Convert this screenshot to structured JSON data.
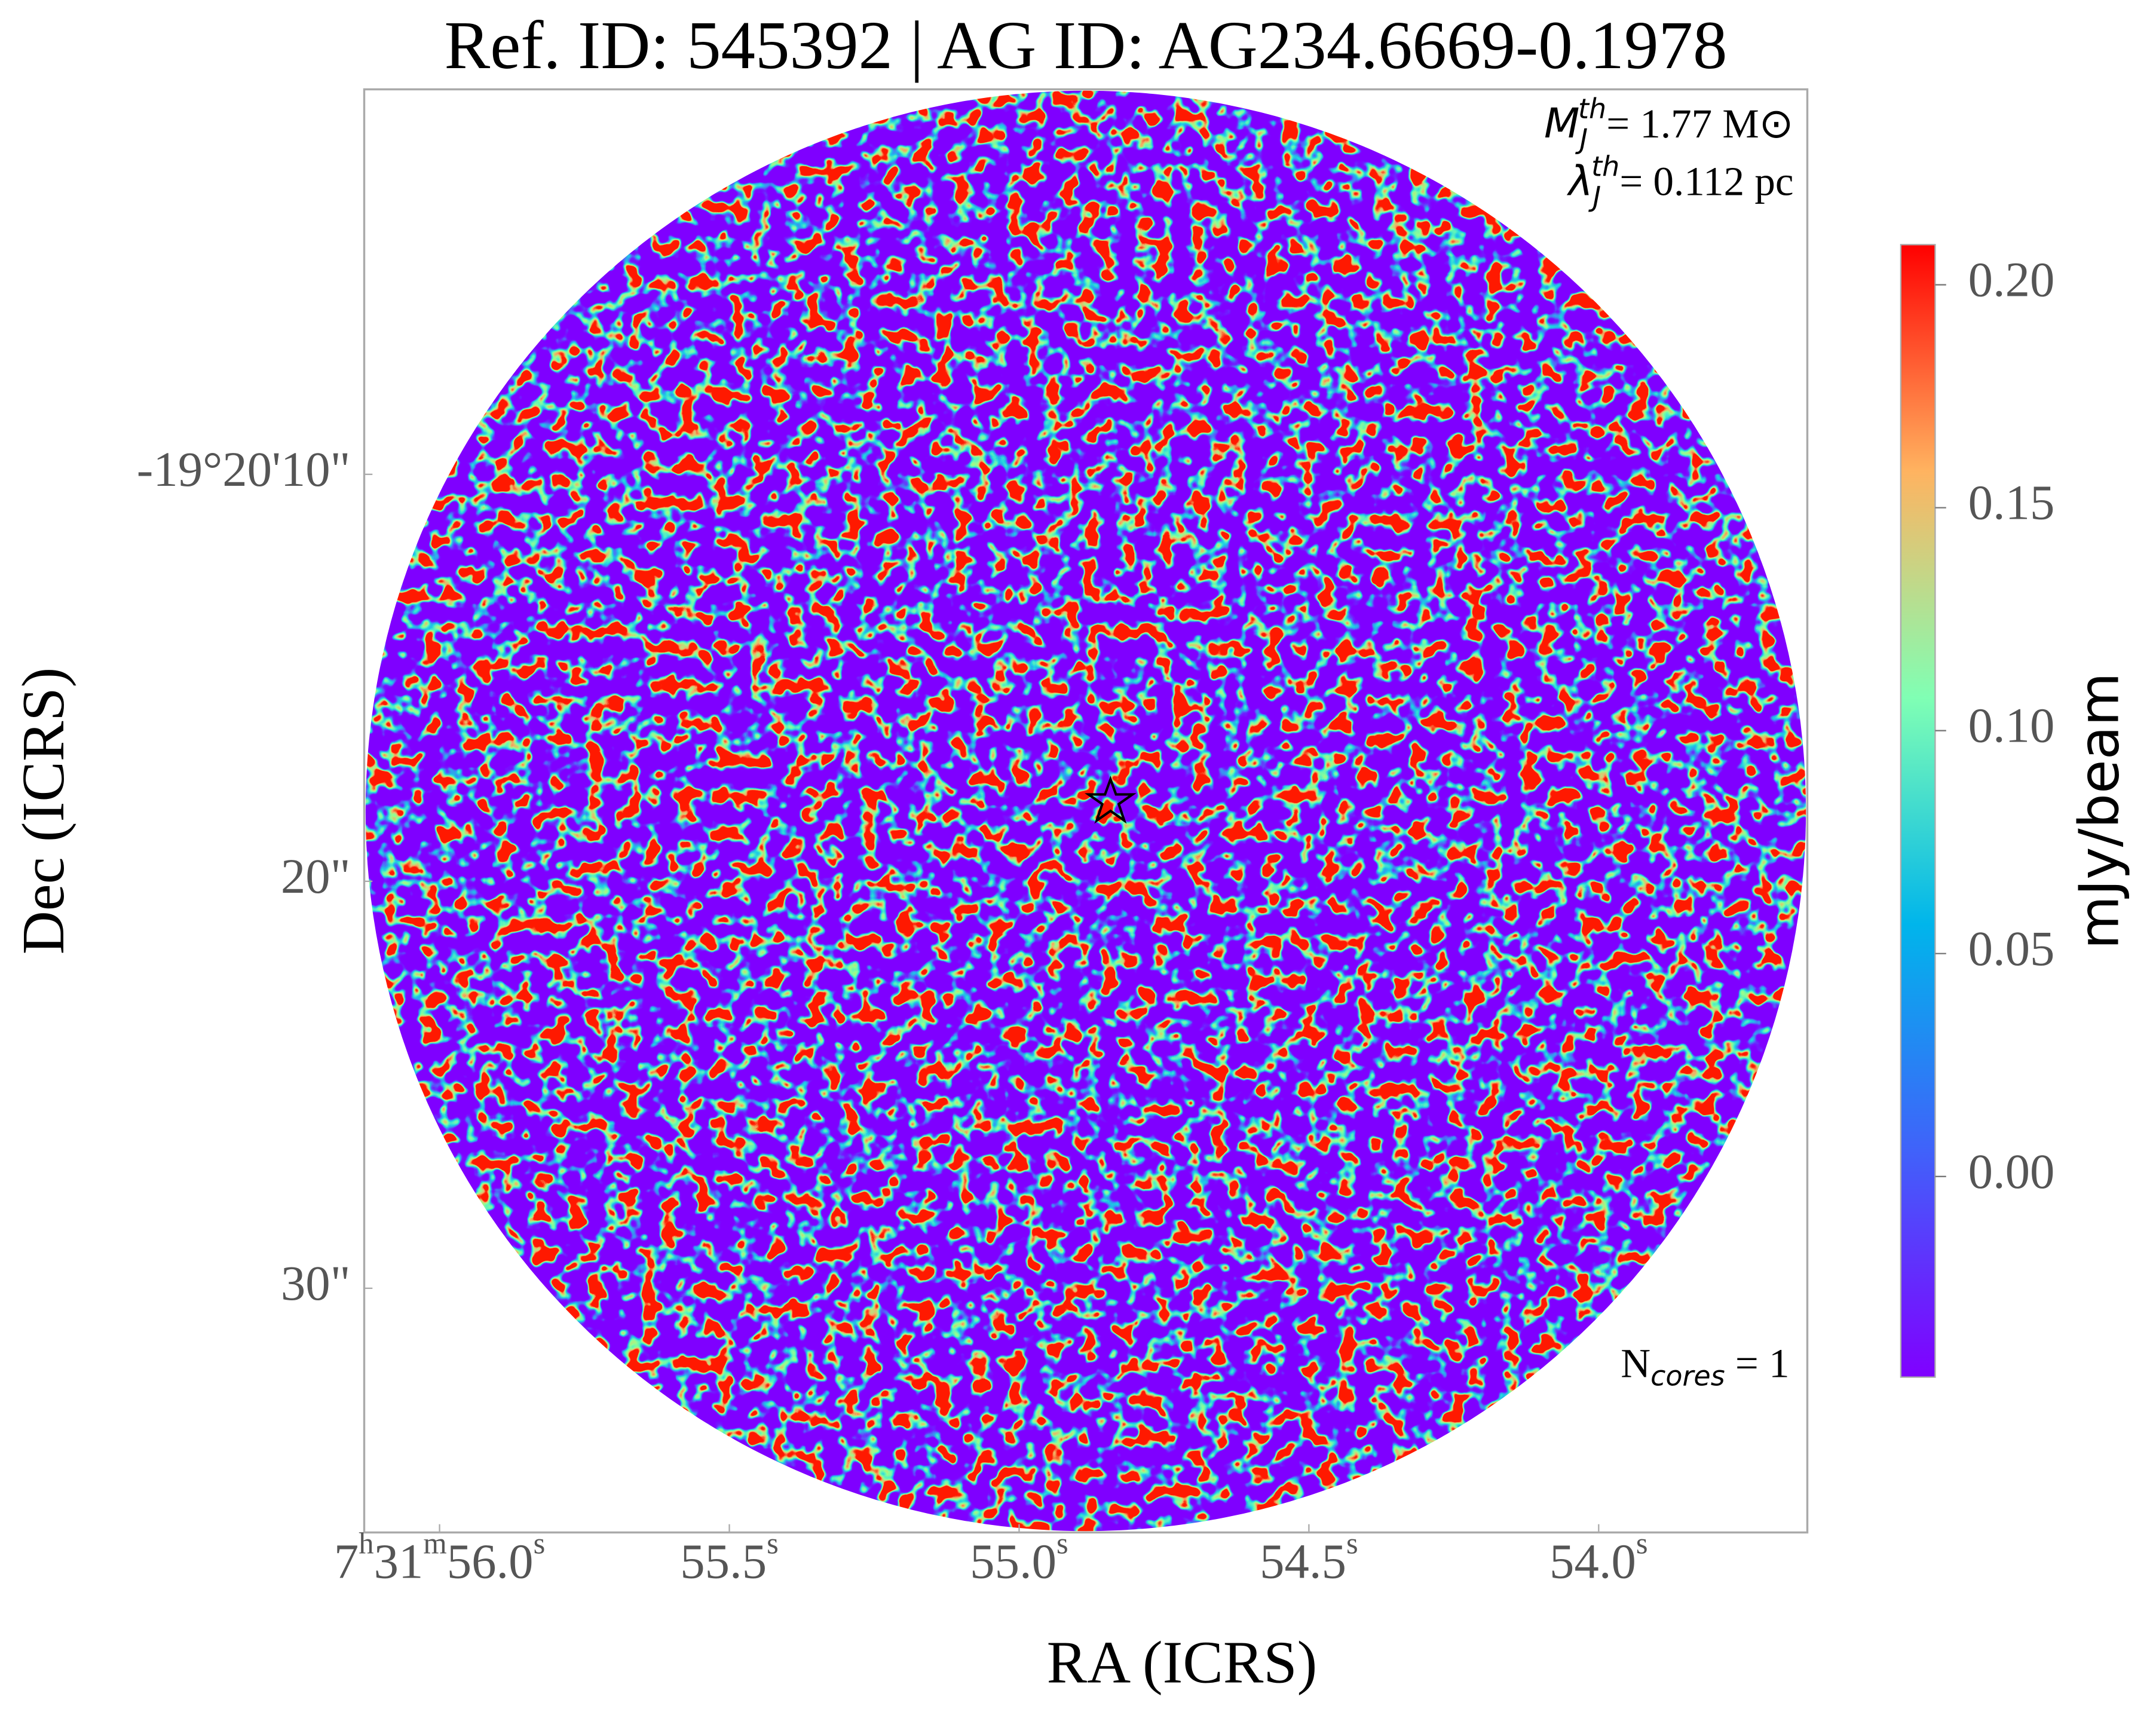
{
  "chart_data": {
    "type": "image",
    "title": "Ref. ID: 545392 | AG ID: AG234.6669-0.1978",
    "x_label": "RA (ICRS)",
    "y_label": "Dec (ICRS)",
    "xlim": [
      56.13,
      53.64
    ],
    "xticks": [
      {
        "value": 56.0,
        "label": "7h31m56.0s"
      },
      {
        "value": 55.5,
        "label": "55.5s"
      },
      {
        "value": 55.0,
        "label": "55.0s"
      },
      {
        "value": 54.5,
        "label": "54.5s"
      },
      {
        "value": 54.0,
        "label": "54.0s"
      }
    ],
    "ylim": [
      36.0,
      0.54
    ],
    "yticks": [
      {
        "value": 10,
        "label": "-19°20'10\""
      },
      {
        "value": 20,
        "label": "20\""
      },
      {
        "value": 30,
        "label": "30\""
      }
    ],
    "colorbar": {
      "label": "mJy/beam",
      "cmap": "rainbow",
      "lim": [
        -0.045,
        0.209
      ],
      "ticks": [
        {
          "value": 0,
          "label": "0.00"
        },
        0.05,
        {
          "value": 0.1,
          "label": "0.10"
        },
        0.15,
        {
          "value": 0.2,
          "label": "0.20"
        }
      ]
    },
    "annotations": [
      {
        "symbol": "M",
        "sub": "J",
        "sup": "th",
        "text": "= 1.77 M⊙"
      },
      {
        "symbol": "λ",
        "sub": "J",
        "sup": "th",
        "text": "= 0.112 pc"
      },
      {
        "symbol": "N",
        "sub": "cores",
        "text": " = 1"
      }
    ]
  }
}
